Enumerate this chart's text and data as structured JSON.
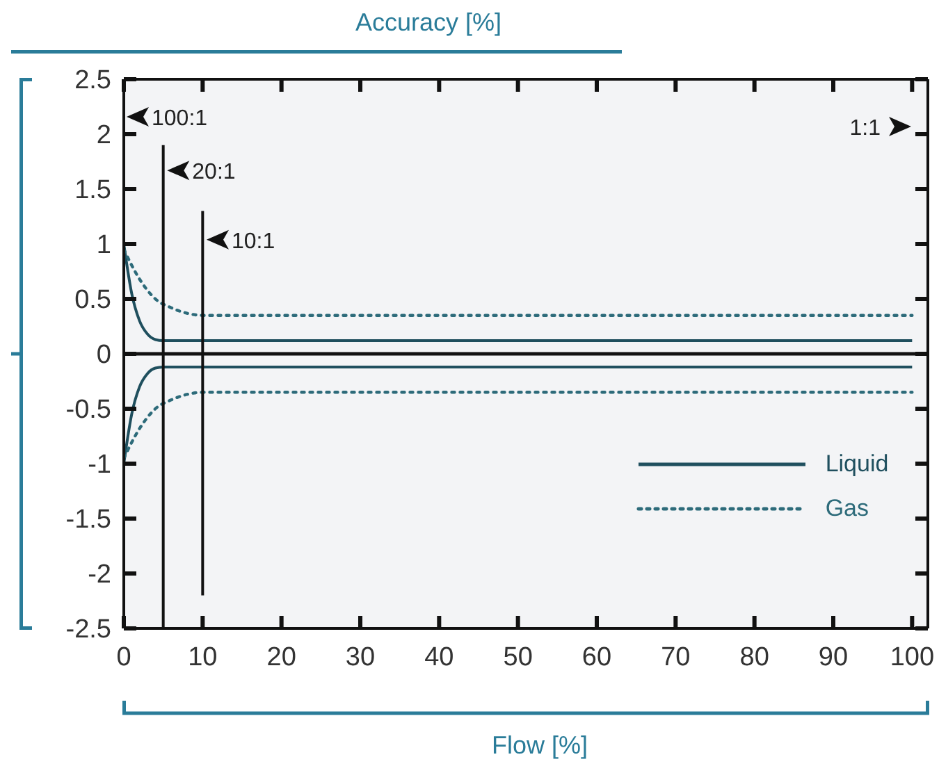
{
  "chart_data": {
    "type": "line",
    "xlabel": "Flow [%]",
    "ylabel": "Accuracy [%]",
    "xlim": [
      0,
      102
    ],
    "xticks": [
      0,
      10,
      20,
      30,
      40,
      50,
      60,
      70,
      80,
      90,
      100
    ],
    "ylim": [
      -2.5,
      2.5
    ],
    "yticks": [
      -2.5,
      -2,
      -1.5,
      -1,
      -0.5,
      0,
      0.5,
      1,
      1.5,
      2,
      2.5
    ],
    "grid": false,
    "legend": "bottom right",
    "marker": "none",
    "series": [
      {
        "name": "Liquid",
        "color": "#1f4f5e",
        "line_style": "solid",
        "x": [
          0,
          1,
          2,
          3,
          4,
          5,
          100
        ],
        "values": [
          1.0,
          0.55,
          0.3,
          0.18,
          0.13,
          0.12,
          0.12
        ]
      },
      {
        "color": "#1f4f5e",
        "line_style": "solid",
        "x": [
          0,
          1,
          2,
          3,
          4,
          5,
          100
        ],
        "values": [
          -1.0,
          -0.55,
          -0.3,
          -0.18,
          -0.13,
          -0.12,
          -0.12
        ]
      },
      {
        "name": "Gas",
        "color": "#2d6b7a",
        "line_style": "dotted",
        "x": [
          0,
          2,
          4,
          6,
          8,
          10,
          100
        ],
        "values": [
          0.95,
          0.68,
          0.5,
          0.42,
          0.37,
          0.35,
          0.35
        ]
      },
      {
        "color": "#2d6b7a",
        "line_style": "dotted",
        "x": [
          0,
          2,
          4,
          6,
          8,
          10,
          100
        ],
        "values": [
          -0.95,
          -0.68,
          -0.5,
          -0.42,
          -0.37,
          -0.35,
          -0.35
        ]
      },
      {
        "color": "#111111",
        "line_style": "solid",
        "x": [
          5,
          5
        ],
        "values": [
          -2.5,
          1.9
        ]
      },
      {
        "color": "#111111",
        "line_style": "solid",
        "x": [
          10,
          10
        ],
        "values": [
          -2.2,
          1.3
        ]
      }
    ],
    "ref_lines": [
      {
        "axis": "y",
        "value": 0,
        "color": "#111111"
      }
    ],
    "annotations": [
      "100:1",
      {
        "text": "20:1",
        "x": 5.5,
        "y": 1.67
      },
      {
        "text": "10:1",
        "x": 10.5,
        "y": 1.04
      },
      "1:1"
    ]
  }
}
